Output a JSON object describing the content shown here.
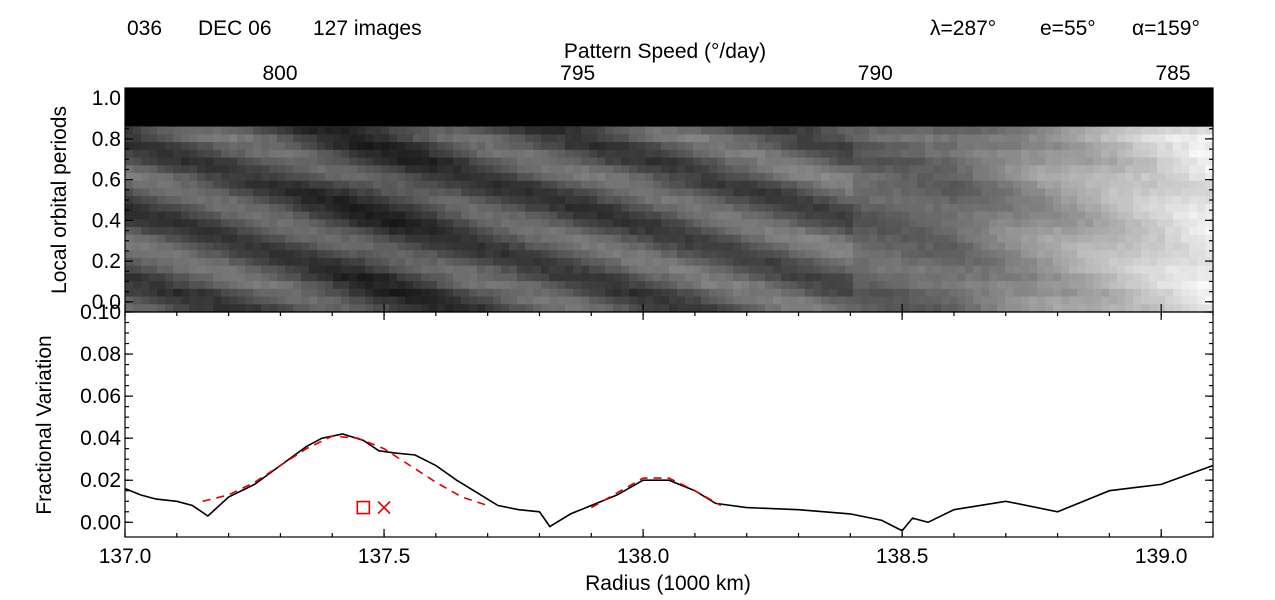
{
  "header": {
    "rev": "036",
    "date": "DEC 06",
    "images": "127 images",
    "lambda": "λ=287°",
    "emission": "e=55°",
    "alpha": "α=159°"
  },
  "chart_data": [
    {
      "type": "heatmap",
      "title": "",
      "xlabel_top": "Pattern Speed (°/day)",
      "ylabel": "Local orbital periods",
      "x_top_ticks": [
        800,
        795,
        790,
        785
      ],
      "x_top_tick_labels": [
        "800",
        "795",
        "790",
        "785"
      ],
      "y_ticks": [
        0.0,
        0.2,
        0.4,
        0.6,
        0.8,
        1.0
      ],
      "y_tick_labels": [
        "0.0",
        "0.2",
        "0.4",
        "0.6",
        "0.8",
        "1.0"
      ],
      "ylim": [
        -0.05,
        1.05
      ],
      "xlim_radius": [
        137.0,
        139.1
      ],
      "colormap": "grayscale",
      "data_top_period": 0.86,
      "masked_band": [
        0.86,
        1.05
      ],
      "masked_color": "#000000",
      "pattern": "diagonal dark bands drifting with radius; bright toward outer radius"
    },
    {
      "type": "line",
      "xlabel": "Radius (1000 km)",
      "ylabel": "Fractional Variation",
      "xlim": [
        137.0,
        139.1
      ],
      "ylim": [
        -0.007,
        0.1
      ],
      "x_ticks": [
        137.0,
        137.5,
        138.0,
        138.5,
        139.0
      ],
      "x_tick_labels": [
        "137.0",
        "137.5",
        "138.0",
        "138.5",
        "139.0"
      ],
      "y_ticks": [
        0.0,
        0.02,
        0.04,
        0.06,
        0.08,
        0.1
      ],
      "y_tick_labels": [
        "0.00",
        "0.02",
        "0.04",
        "0.06",
        "0.08",
        "0.10"
      ],
      "series": [
        {
          "style": "solid",
          "color": "#000000",
          "x": [
            137.0,
            137.03,
            137.06,
            137.1,
            137.13,
            137.16,
            137.2,
            137.25,
            137.3,
            137.35,
            137.38,
            137.42,
            137.46,
            137.49,
            137.52,
            137.56,
            137.6,
            137.64,
            137.68,
            137.72,
            137.76,
            137.8,
            137.82,
            137.86,
            137.9,
            137.95,
            138.0,
            138.05,
            138.1,
            138.14,
            138.2,
            138.3,
            138.4,
            138.46,
            138.5,
            138.52,
            138.55,
            138.6,
            138.7,
            138.8,
            138.9,
            139.0,
            139.1
          ],
          "y": [
            0.016,
            0.013,
            0.011,
            0.01,
            0.008,
            0.003,
            0.012,
            0.018,
            0.027,
            0.036,
            0.04,
            0.042,
            0.039,
            0.034,
            0.033,
            0.032,
            0.027,
            0.02,
            0.014,
            0.008,
            0.006,
            0.005,
            -0.002,
            0.004,
            0.008,
            0.013,
            0.02,
            0.02,
            0.015,
            0.009,
            0.007,
            0.006,
            0.004,
            0.001,
            -0.004,
            0.002,
            0.0,
            0.006,
            0.01,
            0.005,
            0.015,
            0.018,
            0.027
          ]
        },
        {
          "style": "dashed",
          "color": "#e00000",
          "x": [
            137.15,
            137.2,
            137.25,
            137.3,
            137.35,
            137.4,
            137.45,
            137.5,
            137.55,
            137.6,
            137.65,
            137.7
          ],
          "y": [
            0.01,
            0.013,
            0.019,
            0.027,
            0.035,
            0.041,
            0.04,
            0.035,
            0.027,
            0.019,
            0.012,
            0.008
          ]
        },
        {
          "style": "dashed",
          "color": "#e00000",
          "x": [
            137.9,
            137.95,
            138.0,
            138.05,
            138.1,
            138.15
          ],
          "y": [
            0.007,
            0.014,
            0.021,
            0.021,
            0.015,
            0.008
          ]
        }
      ],
      "markers": [
        {
          "symbol": "square",
          "x": 137.46,
          "y": 0.007,
          "color": "#e00000"
        },
        {
          "symbol": "x",
          "x": 137.5,
          "y": 0.007,
          "color": "#e00000"
        }
      ]
    }
  ]
}
